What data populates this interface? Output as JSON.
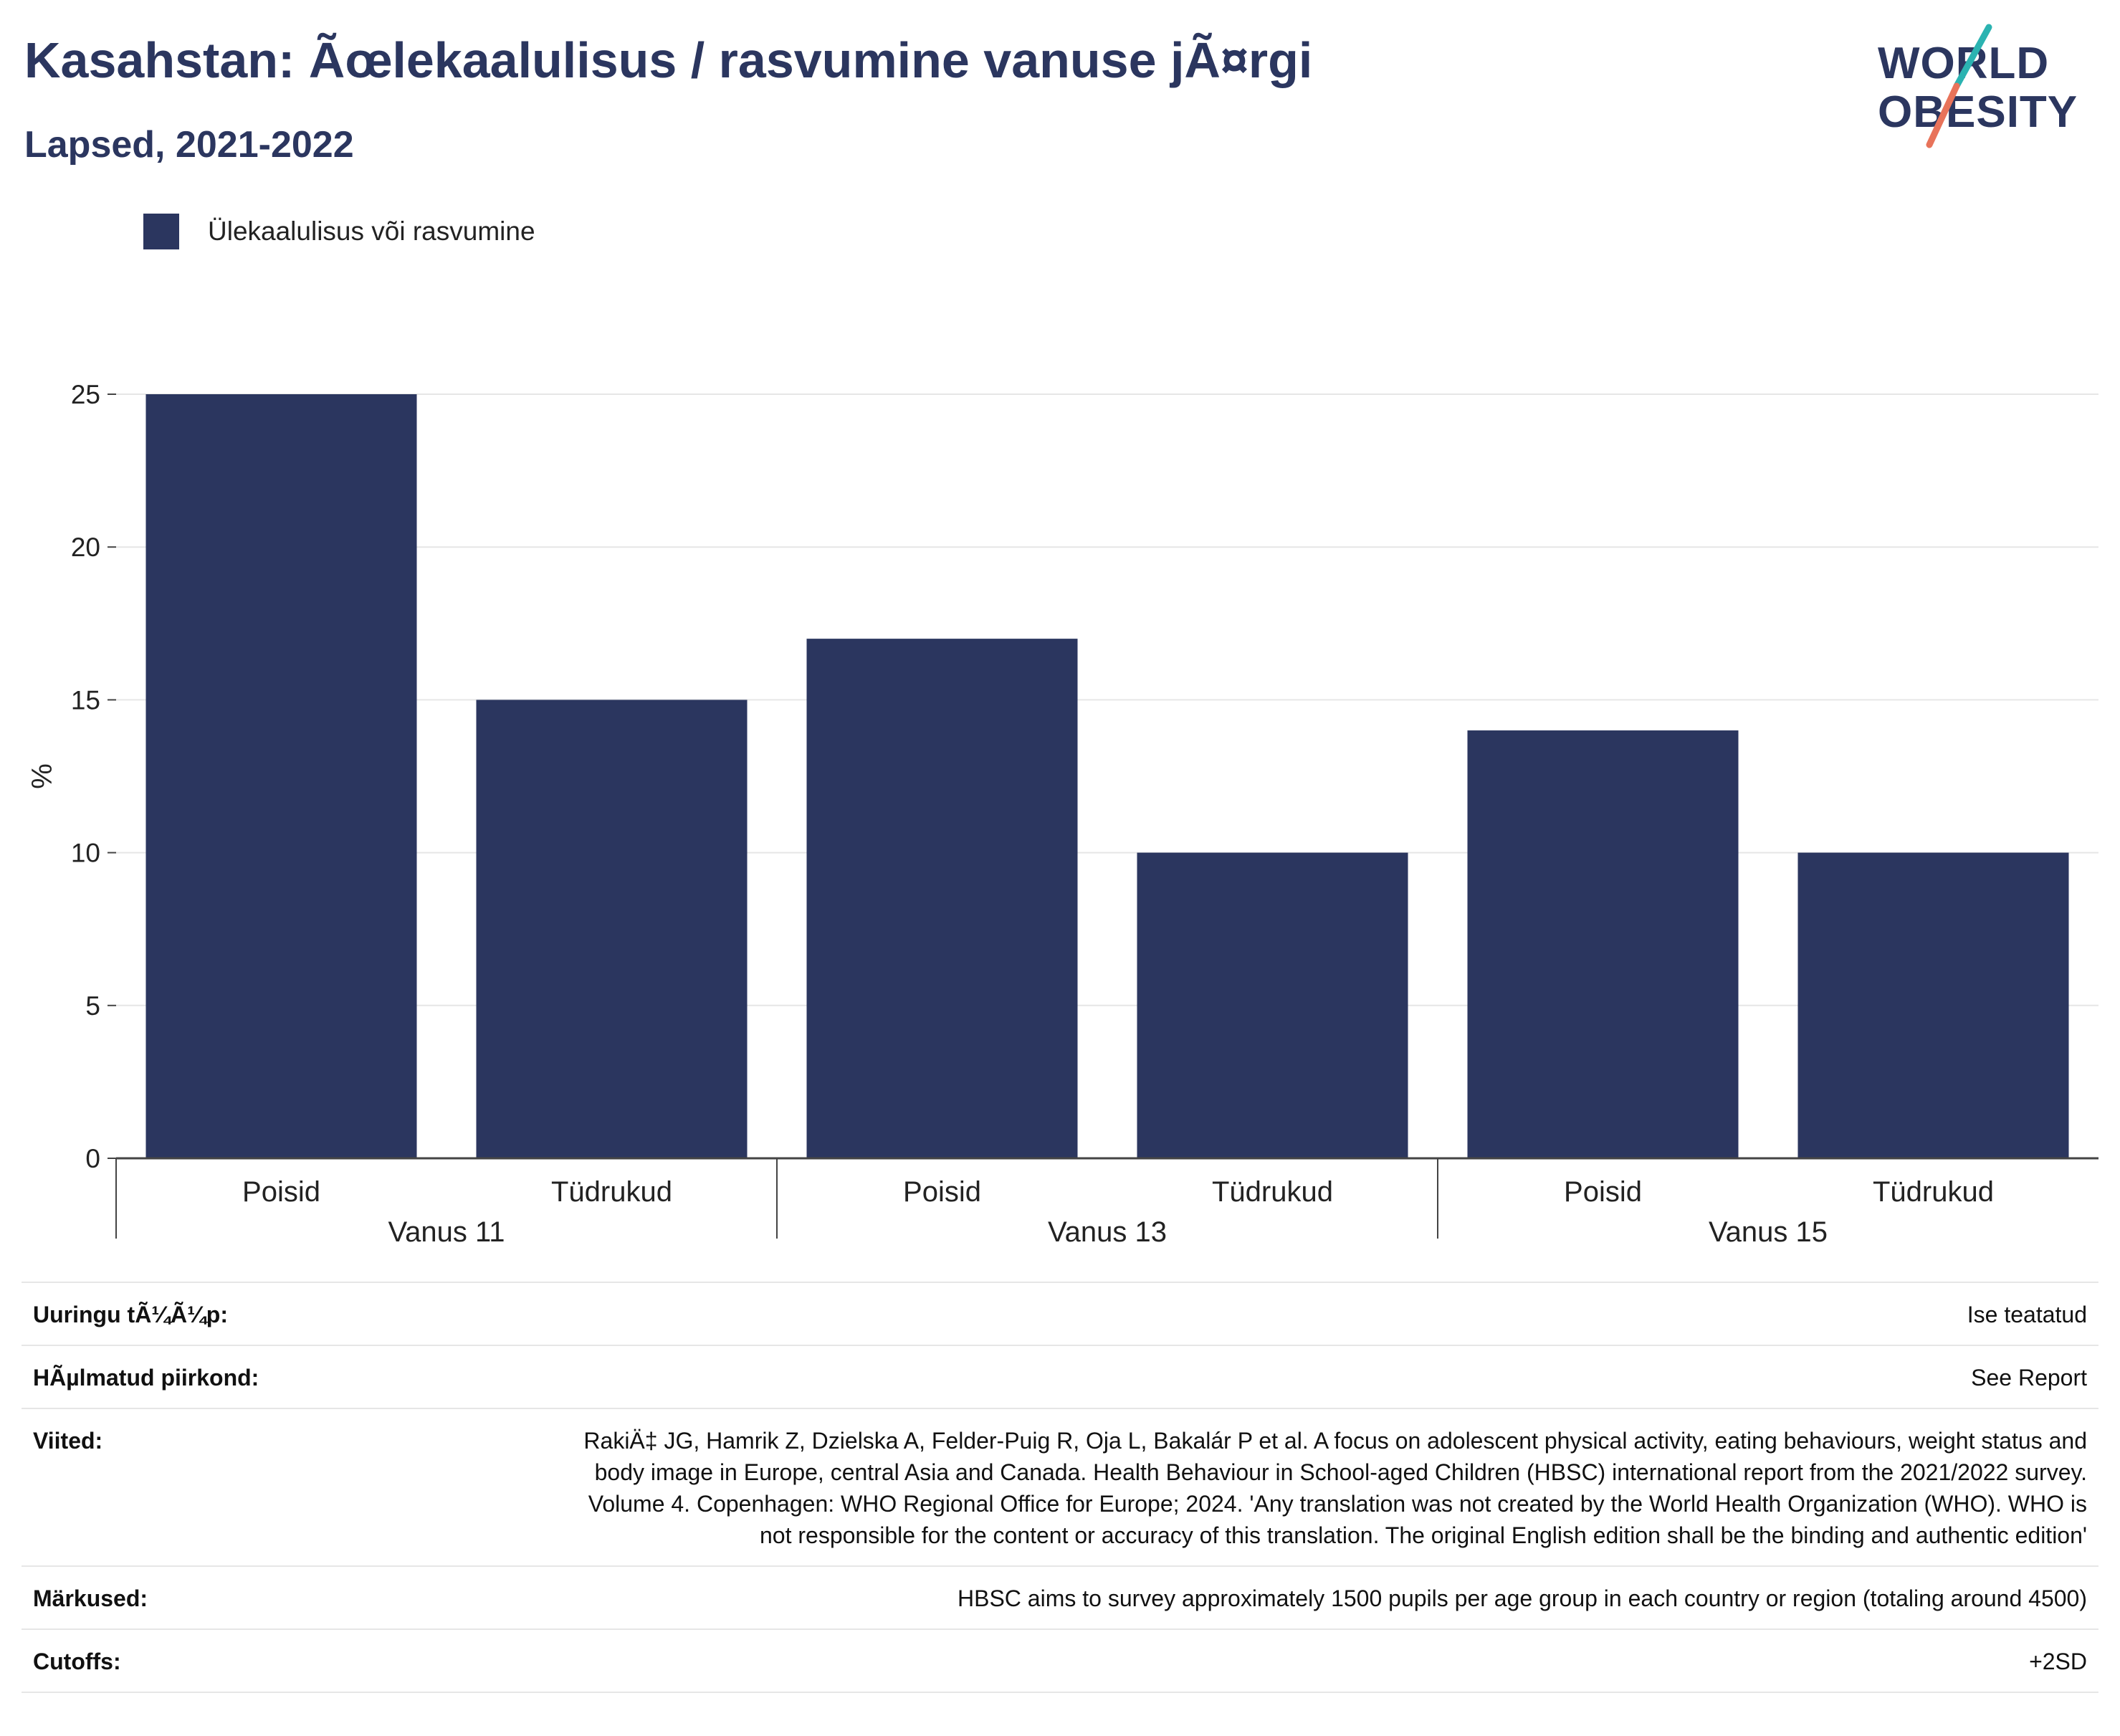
{
  "header": {
    "title": "Kasahstan: Ãœlekaalulisus / rasvumine vanuse jÃ¤rgi",
    "subtitle": "Lapsed, 2021-2022"
  },
  "logo": {
    "line1": "WORLD",
    "line2": "OBESITY",
    "colors": {
      "text": "#2b365f",
      "accent_teal": "#2bb3b1",
      "accent_coral": "#e8735a"
    }
  },
  "chart_data": {
    "type": "bar",
    "legend": {
      "label": "Ülekaalulisus või rasvumine",
      "placement": "top-left"
    },
    "ylabel": "%",
    "ylim": [
      0,
      25
    ],
    "yticks": [
      "0",
      "5",
      "10",
      "15",
      "20",
      "25"
    ],
    "grid": true,
    "groups": [
      {
        "label": "Vanus 11",
        "categories": [
          "Poisid",
          "Tüdrukud"
        ],
        "values": [
          25,
          15
        ]
      },
      {
        "label": "Vanus 13",
        "categories": [
          "Poisid",
          "Tüdrukud"
        ],
        "values": [
          17,
          10
        ]
      },
      {
        "label": "Vanus 15",
        "categories": [
          "Poisid",
          "Tüdrukud"
        ],
        "values": [
          14,
          10
        ]
      }
    ],
    "series": [
      {
        "name": "Ülekaalulisus või rasvumine",
        "color": "#2b365f"
      }
    ]
  },
  "meta": {
    "survey_type": {
      "key": "Uuringu tÃ¼Ã¼p:",
      "value": "Ise teatatud"
    },
    "area": {
      "key": "HÃµlmatud piirkond:",
      "value": "See Report"
    },
    "references": {
      "key": "Viited:",
      "value": "RakiÄ‡ JG, Hamrik Z, Dzielska A, Felder-Puig R, Oja L, Bakalár P et al. A focus on adolescent physical activity, eating behaviours, weight status and body image in Europe, central Asia and Canada. Health Behaviour in School-aged Children (HBSC) international report from the 2021/2022 survey. Volume 4. Copenhagen: WHO Regional Office for Europe; 2024. 'Any translation was not created by the World Health Organization (WHO). WHO is not responsible for the content or accuracy of this translation. The original English edition shall be the binding and authentic edition'"
    },
    "notes": {
      "key": "Märkused:",
      "value": "HBSC aims to survey approximately 1500 pupils per age group in each country or region (totaling around 4500)"
    },
    "cutoffs": {
      "key": "Cutoffs:",
      "value": "+2SD"
    }
  }
}
